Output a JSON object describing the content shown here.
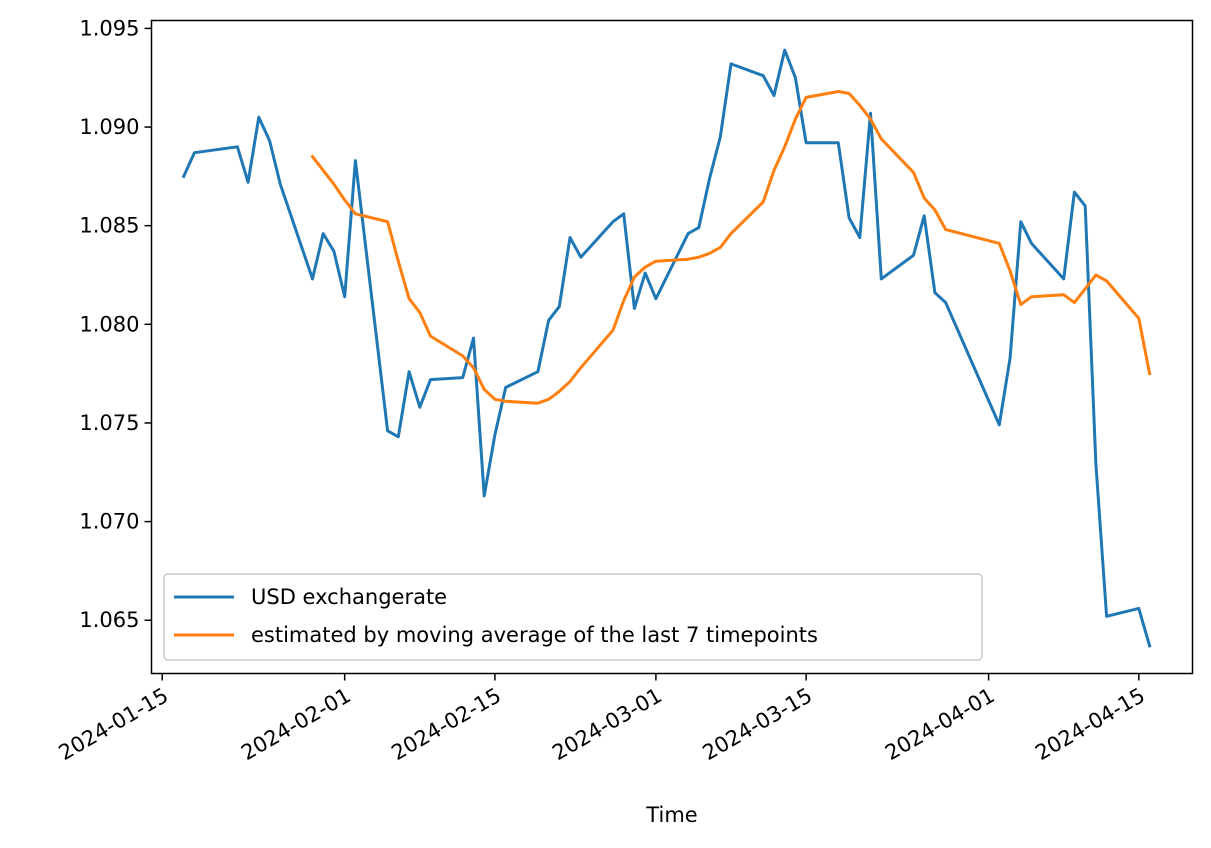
{
  "chart_data": {
    "type": "line",
    "title": "",
    "xlabel": "Time",
    "ylabel": "",
    "x_axis_type": "date",
    "xlim": [
      "2024-01-14",
      "2024-04-20"
    ],
    "ylim": [
      1.0623,
      1.0954
    ],
    "x_ticks": [
      "2024-01-15",
      "2024-02-01",
      "2024-02-15",
      "2024-03-01",
      "2024-03-15",
      "2024-04-01",
      "2024-04-15"
    ],
    "y_ticks": [
      1.065,
      1.07,
      1.075,
      1.08,
      1.085,
      1.09,
      1.095
    ],
    "y_tick_labels": [
      "1.065",
      "1.070",
      "1.075",
      "1.080",
      "1.085",
      "1.090",
      "1.095"
    ],
    "grid": false,
    "legend_position": "lower-left",
    "series": [
      {
        "name": "USD exchangerate",
        "color": "#1f77b4",
        "x": [
          "2024-01-17",
          "2024-01-18",
          "2024-01-22",
          "2024-01-23",
          "2024-01-24",
          "2024-01-25",
          "2024-01-26",
          "2024-01-29",
          "2024-01-30",
          "2024-01-31",
          "2024-02-01",
          "2024-02-02",
          "2024-02-05",
          "2024-02-06",
          "2024-02-07",
          "2024-02-08",
          "2024-02-09",
          "2024-02-12",
          "2024-02-13",
          "2024-02-14",
          "2024-02-15",
          "2024-02-16",
          "2024-02-19",
          "2024-02-20",
          "2024-02-21",
          "2024-02-22",
          "2024-02-23",
          "2024-02-26",
          "2024-02-27",
          "2024-02-28",
          "2024-02-29",
          "2024-03-01",
          "2024-03-04",
          "2024-03-05",
          "2024-03-06",
          "2024-03-07",
          "2024-03-08",
          "2024-03-11",
          "2024-03-12",
          "2024-03-13",
          "2024-03-14",
          "2024-03-15",
          "2024-03-18",
          "2024-03-19",
          "2024-03-20",
          "2024-03-21",
          "2024-03-22",
          "2024-03-25",
          "2024-03-26",
          "2024-03-27",
          "2024-03-28",
          "2024-04-02",
          "2024-04-03",
          "2024-04-04",
          "2024-04-05",
          "2024-04-08",
          "2024-04-09",
          "2024-04-10",
          "2024-04-11",
          "2024-04-12",
          "2024-04-15",
          "2024-04-16"
        ],
        "y": [
          1.0875,
          1.0887,
          1.089,
          1.0872,
          1.0905,
          1.0893,
          1.0871,
          1.0823,
          1.0846,
          1.0837,
          1.0814,
          1.0883,
          1.0746,
          1.0743,
          1.0776,
          1.0758,
          1.0772,
          1.0773,
          1.0793,
          1.0713,
          1.0744,
          1.0768,
          1.0776,
          1.0802,
          1.0809,
          1.0844,
          1.0834,
          1.0852,
          1.0856,
          1.0808,
          1.0826,
          1.0813,
          1.0846,
          1.0849,
          1.0874,
          1.0895,
          1.0932,
          1.0926,
          1.0916,
          1.0939,
          1.0925,
          1.0892,
          1.0892,
          1.0854,
          1.0844,
          1.0907,
          1.0823,
          1.0835,
          1.0855,
          1.0816,
          1.0811,
          1.0749,
          1.0783,
          1.0852,
          1.0841,
          1.0823,
          1.0867,
          1.086,
          1.0729,
          1.0652,
          1.0656,
          1.0637
        ]
      },
      {
        "name": "estimated by moving average of the last 7 timepoints",
        "color": "#ff7f0e",
        "x": [
          "2024-01-29",
          "2024-01-30",
          "2024-01-31",
          "2024-02-01",
          "2024-02-02",
          "2024-02-05",
          "2024-02-06",
          "2024-02-07",
          "2024-02-08",
          "2024-02-09",
          "2024-02-12",
          "2024-02-13",
          "2024-02-14",
          "2024-02-15",
          "2024-02-16",
          "2024-02-19",
          "2024-02-20",
          "2024-02-21",
          "2024-02-22",
          "2024-02-23",
          "2024-02-26",
          "2024-02-27",
          "2024-02-28",
          "2024-02-29",
          "2024-03-01",
          "2024-03-04",
          "2024-03-05",
          "2024-03-06",
          "2024-03-07",
          "2024-03-08",
          "2024-03-11",
          "2024-03-12",
          "2024-03-13",
          "2024-03-14",
          "2024-03-15",
          "2024-03-18",
          "2024-03-19",
          "2024-03-20",
          "2024-03-21",
          "2024-03-22",
          "2024-03-25",
          "2024-03-26",
          "2024-03-27",
          "2024-03-28",
          "2024-04-02",
          "2024-04-03",
          "2024-04-04",
          "2024-04-05",
          "2024-04-08",
          "2024-04-09",
          "2024-04-10",
          "2024-04-11",
          "2024-04-12",
          "2024-04-15",
          "2024-04-16"
        ],
        "y": [
          1.0885,
          1.0878,
          1.0871,
          1.0863,
          1.0856,
          1.0852,
          1.0832,
          1.0813,
          1.0806,
          1.0794,
          1.0784,
          1.0778,
          1.0767,
          1.0762,
          1.0761,
          1.076,
          1.0762,
          1.0766,
          1.0771,
          1.0778,
          1.0797,
          1.0812,
          1.0824,
          1.0829,
          1.0832,
          1.0833,
          1.0834,
          1.0836,
          1.0839,
          1.0846,
          1.0862,
          1.0878,
          1.089,
          1.0904,
          1.0915,
          1.0918,
          1.0917,
          1.0911,
          1.0904,
          1.0894,
          1.0877,
          1.0864,
          1.0858,
          1.0848,
          1.0841,
          1.0827,
          1.081,
          1.0814,
          1.0815,
          1.0811,
          1.0818,
          1.0825,
          1.0822,
          1.0803,
          1.0775
        ]
      }
    ]
  }
}
